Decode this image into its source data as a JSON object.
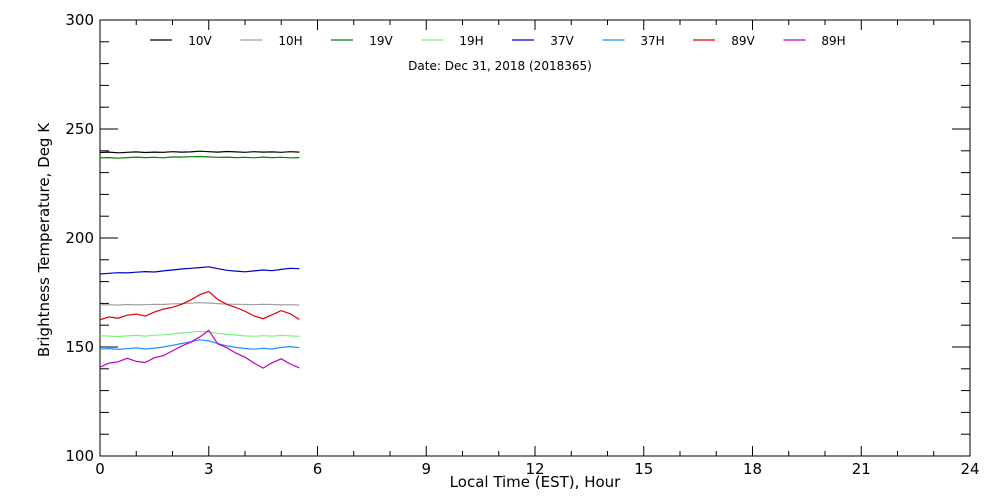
{
  "chart_data": {
    "type": "line",
    "subtitle": "Date: Dec 31, 2018 (2018365)",
    "xlabel": "Local Time (EST), Hour",
    "ylabel": "Brightness Temperature, Deg K",
    "xlim": [
      0,
      24
    ],
    "ylim": [
      100,
      300
    ],
    "xticks": [
      0,
      3,
      6,
      9,
      12,
      15,
      18,
      21,
      24
    ],
    "yticks": [
      100,
      150,
      200,
      250,
      300
    ],
    "x_minor_step": 1,
    "y_minor_step": 10,
    "grid": false,
    "legend_position": "top",
    "series": [
      {
        "name": "10V",
        "color": "#000000",
        "x": [
          0,
          0.25,
          0.5,
          0.75,
          1,
          1.25,
          1.5,
          1.75,
          2,
          2.25,
          2.5,
          2.75,
          3,
          3.25,
          3.5,
          3.75,
          4,
          4.25,
          4.5,
          4.75,
          5,
          5.25,
          5.5
        ],
        "y": [
          239.2,
          239.4,
          239.1,
          239.3,
          239.5,
          239.2,
          239.4,
          239.3,
          239.6,
          239.4,
          239.5,
          239.8,
          239.6,
          239.4,
          239.7,
          239.5,
          239.3,
          239.6,
          239.4,
          239.5,
          239.3,
          239.6,
          239.4
        ]
      },
      {
        "name": "10H",
        "color": "#a0a0a0",
        "x": [
          0,
          0.25,
          0.5,
          0.75,
          1,
          1.25,
          1.5,
          1.75,
          2,
          2.25,
          2.5,
          2.75,
          3,
          3.25,
          3.5,
          3.75,
          4,
          4.25,
          4.5,
          4.75,
          5,
          5.25,
          5.5
        ],
        "y": [
          169.3,
          169.4,
          169.2,
          169.5,
          169.3,
          169.4,
          169.6,
          169.5,
          169.8,
          169.9,
          170.1,
          170.3,
          170.2,
          169.9,
          169.7,
          169.6,
          169.5,
          169.4,
          169.6,
          169.5,
          169.3,
          169.4,
          169.2
        ]
      },
      {
        "name": "19V",
        "color": "#008000",
        "x": [
          0,
          0.25,
          0.5,
          0.75,
          1,
          1.25,
          1.5,
          1.75,
          2,
          2.25,
          2.5,
          2.75,
          3,
          3.25,
          3.5,
          3.75,
          4,
          4.25,
          4.5,
          4.75,
          5,
          5.25,
          5.5
        ],
        "y": [
          236.8,
          236.9,
          236.6,
          236.9,
          237.1,
          236.9,
          237.0,
          236.8,
          237.2,
          237.1,
          237.3,
          237.4,
          237.2,
          237.0,
          237.1,
          236.9,
          237.0,
          236.8,
          237.1,
          236.9,
          237.0,
          236.8,
          236.9
        ]
      },
      {
        "name": "19H",
        "color": "#80f080",
        "x": [
          0,
          0.25,
          0.5,
          0.75,
          1,
          1.25,
          1.5,
          1.75,
          2,
          2.25,
          2.5,
          2.75,
          3,
          3.25,
          3.5,
          3.75,
          4,
          4.25,
          4.5,
          4.75,
          5,
          5.25,
          5.5
        ],
        "y": [
          155.2,
          155.0,
          154.8,
          155.1,
          155.3,
          155.0,
          155.4,
          155.6,
          156.0,
          156.4,
          156.8,
          157.2,
          156.9,
          156.3,
          155.8,
          155.5,
          155.1,
          154.9,
          155.2,
          155.0,
          155.3,
          155.1,
          154.9
        ]
      },
      {
        "name": "37V",
        "color": "#0000c0",
        "x": [
          0,
          0.25,
          0.5,
          0.75,
          1,
          1.25,
          1.5,
          1.75,
          2,
          2.25,
          2.5,
          2.75,
          3,
          3.25,
          3.5,
          3.75,
          4,
          4.25,
          4.5,
          4.75,
          5,
          5.25,
          5.5
        ],
        "y": [
          183.5,
          183.8,
          184.1,
          184.0,
          184.3,
          184.6,
          184.4,
          184.9,
          185.3,
          185.8,
          186.1,
          186.4,
          186.8,
          185.9,
          185.2,
          184.8,
          184.5,
          184.9,
          185.3,
          185.0,
          185.6,
          186.1,
          185.9
        ]
      },
      {
        "name": "37H",
        "color": "#1e90ff",
        "x": [
          0,
          0.25,
          0.5,
          0.75,
          1,
          1.25,
          1.5,
          1.75,
          2,
          2.25,
          2.5,
          2.75,
          3,
          3.25,
          3.5,
          3.75,
          4,
          4.25,
          4.5,
          4.75,
          5,
          5.25,
          5.5
        ],
        "y": [
          149.0,
          149.3,
          148.9,
          149.2,
          149.6,
          149.1,
          149.5,
          150.0,
          150.8,
          151.6,
          152.4,
          153.3,
          152.8,
          151.6,
          150.5,
          149.8,
          149.3,
          149.0,
          149.4,
          149.1,
          149.8,
          150.2,
          149.7
        ]
      },
      {
        "name": "89V",
        "color": "#e00000",
        "x": [
          0,
          0.25,
          0.5,
          0.75,
          1,
          1.25,
          1.5,
          1.75,
          2,
          2.25,
          2.5,
          2.75,
          3,
          3.25,
          3.5,
          3.75,
          4,
          4.25,
          4.5,
          4.75,
          5,
          5.25,
          5.5
        ],
        "y": [
          162.5,
          163.8,
          163.2,
          164.6,
          165.1,
          164.2,
          166.0,
          167.4,
          168.2,
          169.6,
          171.5,
          174.0,
          175.4,
          171.8,
          169.6,
          168.1,
          166.4,
          164.2,
          163.0,
          164.8,
          166.7,
          165.2,
          162.6
        ]
      },
      {
        "name": "89H",
        "color": "#c000c0",
        "x": [
          0,
          0.25,
          0.5,
          0.75,
          1,
          1.25,
          1.5,
          1.75,
          2,
          2.25,
          2.5,
          2.75,
          3,
          3.25,
          3.5,
          3.75,
          4,
          4.25,
          4.5,
          4.75,
          5,
          5.25,
          5.5
        ],
        "y": [
          140.8,
          142.6,
          143.2,
          144.8,
          143.4,
          142.9,
          145.1,
          146.0,
          148.2,
          150.4,
          152.2,
          154.6,
          157.6,
          151.4,
          149.7,
          147.2,
          145.3,
          142.6,
          140.3,
          142.8,
          144.6,
          142.2,
          140.4
        ]
      }
    ]
  }
}
